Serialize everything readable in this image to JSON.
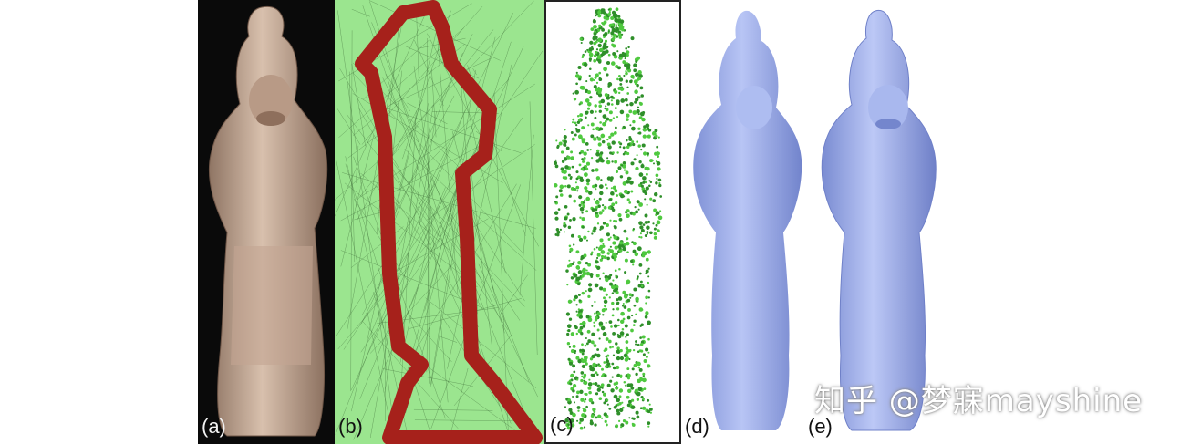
{
  "panels": [
    {
      "label": "(a)"
    },
    {
      "label": "(b)"
    },
    {
      "label": "(c)"
    },
    {
      "label": "(d)"
    },
    {
      "label": "(e)"
    }
  ],
  "watermark": "知乎 @梦寐mayshine",
  "colors": {
    "photo_bg": "#0a0a0a",
    "statue_clay": "#c9ad9a",
    "mesh_green": "#9be58f",
    "mesh_red": "#a6211b",
    "points_green": "#4fc93f",
    "render_blue": "#9fb0ea"
  }
}
